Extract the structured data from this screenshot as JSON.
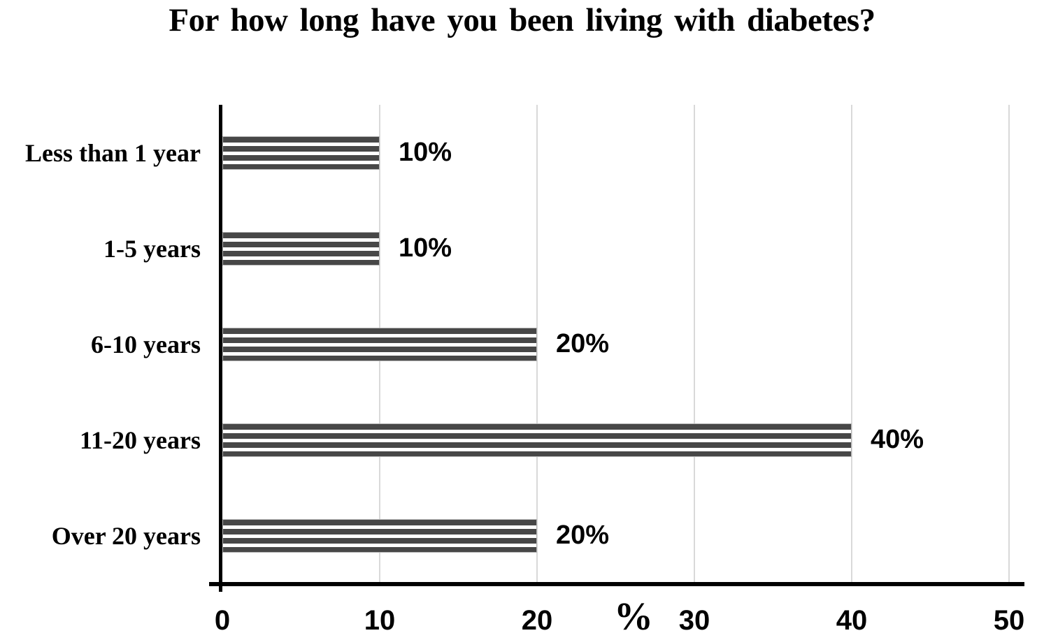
{
  "chart_data": {
    "type": "bar",
    "orientation": "horizontal",
    "title": "For how long have you been living with diabetes?",
    "categories": [
      "Less than 1 year",
      "1-5 years",
      "6-10 years",
      "11-20 years",
      "Over 20 years"
    ],
    "values": [
      10,
      10,
      20,
      40,
      20
    ],
    "data_labels": [
      "10%",
      "10%",
      "20%",
      "40%",
      "20%"
    ],
    "xlabel": "%",
    "xlim": [
      0,
      50
    ],
    "x_ticks": [
      0,
      10,
      20,
      30,
      40,
      50
    ],
    "grid": "vertical-gridlines-on",
    "legend": "none",
    "bar_style": "horizontal-stripe-pattern",
    "colors": {
      "bar_stripe": "#474747",
      "bar_fill_background": "#ffffff",
      "bar_border": "#b3b3b3",
      "gridline": "#d9d9d9",
      "axis": "#000000",
      "text": "#000000",
      "background": "#ffffff"
    }
  }
}
